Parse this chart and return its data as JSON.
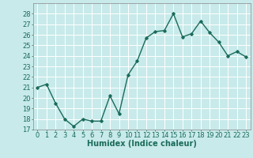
{
  "x": [
    0,
    1,
    2,
    3,
    4,
    5,
    6,
    7,
    8,
    9,
    10,
    11,
    12,
    13,
    14,
    15,
    16,
    17,
    18,
    19,
    20,
    21,
    22,
    23
  ],
  "y": [
    21.0,
    21.3,
    19.5,
    18.0,
    17.3,
    18.0,
    17.8,
    17.8,
    20.2,
    18.5,
    22.2,
    23.5,
    25.7,
    26.3,
    26.4,
    28.0,
    25.8,
    26.1,
    27.3,
    26.2,
    25.3,
    24.0,
    24.4,
    23.9
  ],
  "line_color": "#1a6b5a",
  "marker": "D",
  "marker_size": 1.8,
  "bg_color": "#c8eaea",
  "grid_color": "#ffffff",
  "xlabel": "Humidex (Indice chaleur)",
  "xlabel_fontsize": 7,
  "tick_fontsize": 6,
  "ylim": [
    17,
    29
  ],
  "yticks": [
    17,
    18,
    19,
    20,
    21,
    22,
    23,
    24,
    25,
    26,
    27,
    28
  ],
  "xticks": [
    0,
    1,
    2,
    3,
    4,
    5,
    6,
    7,
    8,
    9,
    10,
    11,
    12,
    13,
    14,
    15,
    16,
    17,
    18,
    19,
    20,
    21,
    22,
    23
  ],
  "line_width": 1.0
}
